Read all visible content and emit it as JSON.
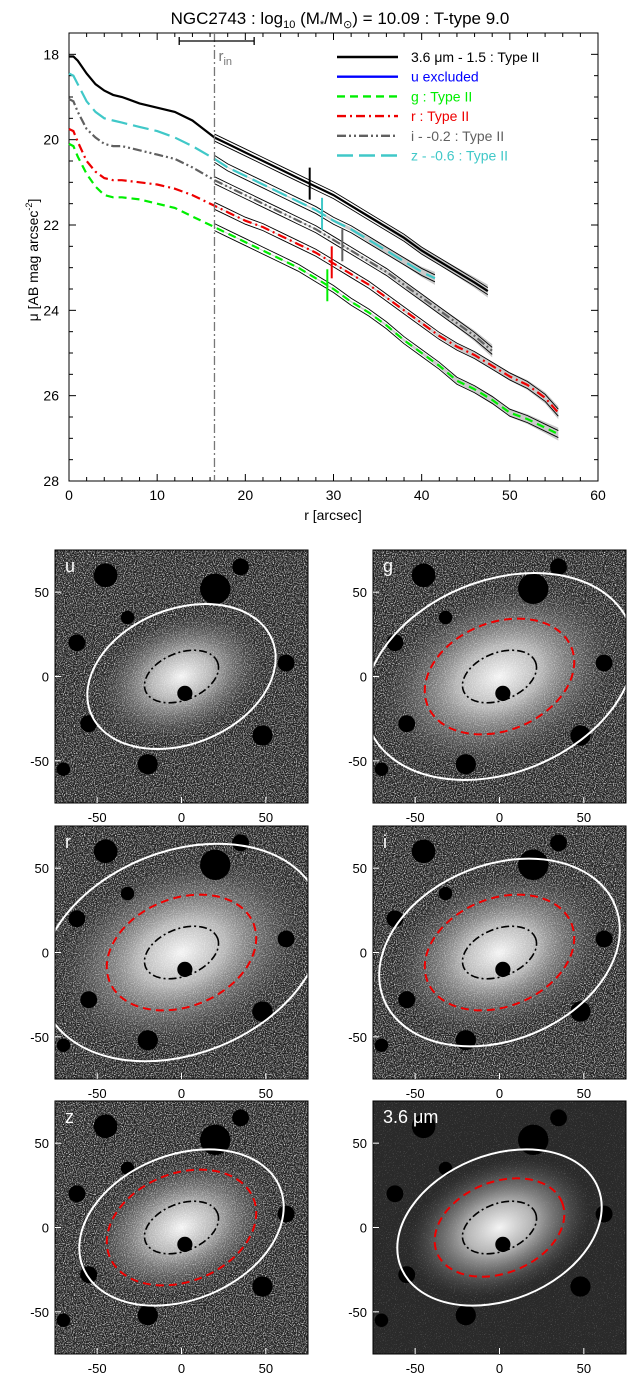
{
  "chart_data": [
    {
      "type": "line",
      "title_main": "NGC2743 : log",
      "title_sub": "10",
      "title_mid": " (M",
      "title_star": "*",
      "title_slash": "/M",
      "title_end": ") = 10.09 : T-type 9.0",
      "xlabel": "r [arcsec]",
      "ylabel": "μ [AB mag arcsec",
      "ylabel_sup": "-2",
      "ylabel_end": "]",
      "xlim": [
        0,
        60
      ],
      "ylim": [
        28,
        17.5
      ],
      "xticks": [
        "0",
        "10",
        "20",
        "30",
        "40",
        "50",
        "60"
      ],
      "yticks": [
        "18",
        "20",
        "22",
        "24",
        "26",
        "28"
      ],
      "r_in": {
        "label": "r",
        "sub": "in",
        "value": 16.5,
        "err_low": 12.5,
        "err_high": 21
      },
      "series": [
        {
          "name": "3.6 μm - 1.5 : Type II",
          "color": "#000000",
          "dash": "solid",
          "x": [
            0,
            0.5,
            1,
            2,
            3,
            4,
            5,
            6,
            8,
            10,
            12,
            14,
            16.5,
            18,
            20,
            22,
            24,
            26,
            28,
            30,
            32,
            34,
            36,
            38,
            40,
            42,
            44,
            46,
            47.5
          ],
          "y": [
            18.05,
            18.05,
            18.15,
            18.45,
            18.7,
            18.85,
            18.95,
            19.0,
            19.15,
            19.25,
            19.35,
            19.55,
            19.95,
            20.1,
            20.3,
            20.5,
            20.7,
            20.9,
            21.1,
            21.3,
            21.55,
            21.8,
            22.05,
            22.3,
            22.6,
            22.85,
            23.1,
            23.35,
            23.55
          ],
          "break_r": 27.3
        },
        {
          "name": "u excluded",
          "color": "#0000ff",
          "dash": "solid",
          "x": [],
          "y": []
        },
        {
          "name": "g : Type II",
          "color": "#00ee00",
          "dash": "dash",
          "x": [
            0,
            0.5,
            1,
            2,
            3,
            4,
            5,
            6,
            8,
            10,
            12,
            14,
            16.5,
            18,
            20,
            22,
            24,
            26,
            28,
            30,
            32,
            34,
            36,
            38,
            40,
            42,
            44,
            46,
            48,
            50,
            52,
            54,
            55.5
          ],
          "y": [
            20.1,
            20.15,
            20.4,
            20.8,
            21.1,
            21.3,
            21.35,
            21.35,
            21.4,
            21.5,
            21.6,
            21.8,
            22.05,
            22.2,
            22.4,
            22.6,
            22.8,
            23.0,
            23.25,
            23.5,
            23.8,
            24.05,
            24.35,
            24.7,
            25.0,
            25.3,
            25.65,
            25.85,
            26.1,
            26.4,
            26.55,
            26.75,
            26.9
          ],
          "break_r": 29.3
        },
        {
          "name": "r : Type II",
          "color": "#ee0000",
          "dash": "dashdot",
          "x": [
            0,
            0.5,
            1,
            2,
            3,
            4,
            5,
            6,
            8,
            10,
            12,
            14,
            16.5,
            18,
            20,
            22,
            24,
            26,
            28,
            30,
            32,
            34,
            36,
            38,
            40,
            42,
            44,
            46,
            48,
            50,
            52,
            54,
            55.5
          ],
          "y": [
            19.75,
            19.8,
            20.05,
            20.5,
            20.75,
            20.9,
            20.95,
            20.95,
            21.0,
            21.05,
            21.15,
            21.3,
            21.55,
            21.7,
            21.9,
            22.05,
            22.25,
            22.45,
            22.65,
            22.9,
            23.15,
            23.4,
            23.7,
            24.0,
            24.3,
            24.6,
            24.85,
            25.05,
            25.3,
            25.55,
            25.75,
            26.05,
            26.4
          ],
          "break_r": 29.8
        },
        {
          "name": "i - -0.2 : Type II",
          "color": "#606060",
          "dash": "dashdotdot",
          "x": [
            0,
            0.5,
            1,
            2,
            3,
            4,
            5,
            6,
            8,
            10,
            12,
            14,
            16.5,
            18,
            20,
            22,
            24,
            26,
            28,
            30,
            32,
            34,
            36,
            38,
            40,
            42,
            44,
            46,
            48
          ],
          "y": [
            19.05,
            19.1,
            19.35,
            19.75,
            19.95,
            20.1,
            20.15,
            20.15,
            20.25,
            20.35,
            20.45,
            20.65,
            20.95,
            21.1,
            21.3,
            21.5,
            21.7,
            21.9,
            22.1,
            22.35,
            22.6,
            22.85,
            23.1,
            23.4,
            23.7,
            24.0,
            24.3,
            24.6,
            24.95
          ],
          "break_r": 31
        },
        {
          "name": "z - -0.6 : Type II",
          "color": "#40c8c8",
          "dash": "longdash",
          "x": [
            0,
            0.5,
            1,
            2,
            3,
            4,
            5,
            6,
            8,
            10,
            12,
            14,
            16.5,
            18,
            20,
            22,
            24,
            26,
            28,
            30,
            32,
            34,
            36,
            38,
            40,
            41.5
          ],
          "y": [
            18.45,
            18.5,
            18.7,
            19.1,
            19.35,
            19.5,
            19.55,
            19.6,
            19.7,
            19.8,
            19.95,
            20.15,
            20.45,
            20.65,
            20.85,
            21.05,
            21.25,
            21.45,
            21.65,
            21.9,
            22.1,
            22.35,
            22.6,
            22.85,
            23.1,
            23.25
          ],
          "break_r": 28.7
        }
      ]
    },
    {
      "type": "image-panels",
      "xticks": [
        "-50",
        "0",
        "50"
      ],
      "yticks": [
        "50",
        "0",
        "-50"
      ],
      "panels": [
        {
          "label": "u"
        },
        {
          "label": "g"
        },
        {
          "label": "r"
        },
        {
          "label": "i"
        },
        {
          "label": "z"
        },
        {
          "label": "3.6 μm"
        }
      ]
    }
  ]
}
